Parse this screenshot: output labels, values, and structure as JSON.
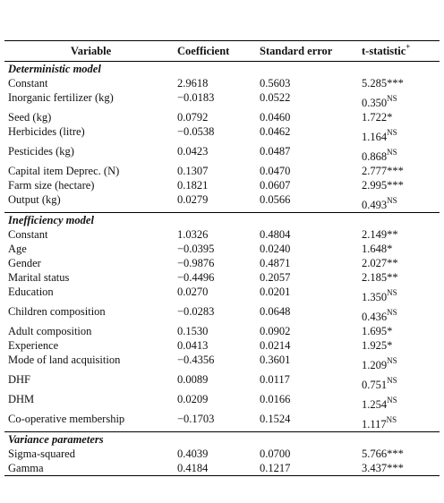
{
  "table": {
    "header": {
      "variable": "Variable",
      "coefficient": "Coefficient",
      "standard_error": "Standard error",
      "t_statistic": "t-statistic",
      "t_statistic_sup": "+"
    },
    "sections": [
      {
        "title": "Deterministic model",
        "rows": [
          {
            "variable": "Constant",
            "coefficient": "2.9618",
            "standard_error": "0.5603",
            "t": "5.285***"
          },
          {
            "variable": "Inorganic fertilizer (kg)",
            "coefficient": "−0.0183",
            "standard_error": "0.0522",
            "t": "0.350",
            "t_sup": "NS"
          },
          {
            "variable": "Seed (kg)",
            "coefficient": "0.0792",
            "standard_error": "0.0460",
            "t": "1.722*"
          },
          {
            "variable": "Herbicides (litre)",
            "coefficient": "−0.0538",
            "standard_error": "0.0462",
            "t": "1.164",
            "t_sup": "NS"
          },
          {
            "variable": "Pesticides (kg)",
            "coefficient": "0.0423",
            "standard_error": "0.0487",
            "t": "0.868",
            "t_sup": "NS"
          },
          {
            "variable": "Capital item Deprec. (N)",
            "coefficient": "0.1307",
            "standard_error": "0.0470",
            "t": "2.777***"
          },
          {
            "variable": "Farm size (hectare)",
            "coefficient": "0.1821",
            "standard_error": "0.0607",
            "t": "2.995***"
          },
          {
            "variable": "Output (kg)",
            "coefficient": "0.0279",
            "standard_error": "0.0566",
            "t": "0.493",
            "t_sup": "NS"
          }
        ]
      },
      {
        "title": "Inefficiency model",
        "rows": [
          {
            "variable": "Constant",
            "coefficient": "1.0326",
            "standard_error": "0.4804",
            "t": "2.149**"
          },
          {
            "variable": "Age",
            "coefficient": "−0.0395",
            "standard_error": "0.0240",
            "t": "1.648*"
          },
          {
            "variable": "Gender",
            "coefficient": "−0.9876",
            "standard_error": "0.4871",
            "t": "2.027**"
          },
          {
            "variable": "Marital status",
            "coefficient": "−0.4496",
            "standard_error": "0.2057",
            "t": "2.185**"
          },
          {
            "variable": "Education",
            "coefficient": "0.0270",
            "standard_error": "0.0201",
            "t": "1.350",
            "t_sup": "NS"
          },
          {
            "variable": "Children composition",
            "coefficient": "−0.0283",
            "standard_error": "0.0648",
            "t": "0.436",
            "t_sup": "NS"
          },
          {
            "variable": "Adult composition",
            "coefficient": "0.1530",
            "standard_error": "0.0902",
            "t": "1.695*"
          },
          {
            "variable": "Experience",
            "coefficient": "0.0413",
            "standard_error": "0.0214",
            "t": "1.925*"
          },
          {
            "variable": "Mode of land acquisition",
            "coefficient": "−0.4356",
            "standard_error": "0.3601",
            "t": "1.209",
            "t_sup": "NS"
          },
          {
            "variable": "DHF",
            "coefficient": "0.0089",
            "standard_error": "0.0117",
            "t": "0.751",
            "t_sup": "NS"
          },
          {
            "variable": "DHM",
            "coefficient": "0.0209",
            "standard_error": "0.0166",
            "t": "1.254",
            "t_sup": "NS"
          },
          {
            "variable": "Co-operative membership",
            "coefficient": "−0.1703",
            "standard_error": "0.1524",
            "t": "1.117",
            "t_sup": "NS"
          }
        ]
      },
      {
        "title": "Variance parameters",
        "rows": [
          {
            "variable": "Sigma-squared",
            "coefficient": "0.4039",
            "standard_error": "0.0700",
            "t": "5.766***"
          },
          {
            "variable": "Gamma",
            "coefficient": "0.4184",
            "standard_error": "0.1217",
            "t": "3.437***"
          }
        ]
      }
    ]
  }
}
